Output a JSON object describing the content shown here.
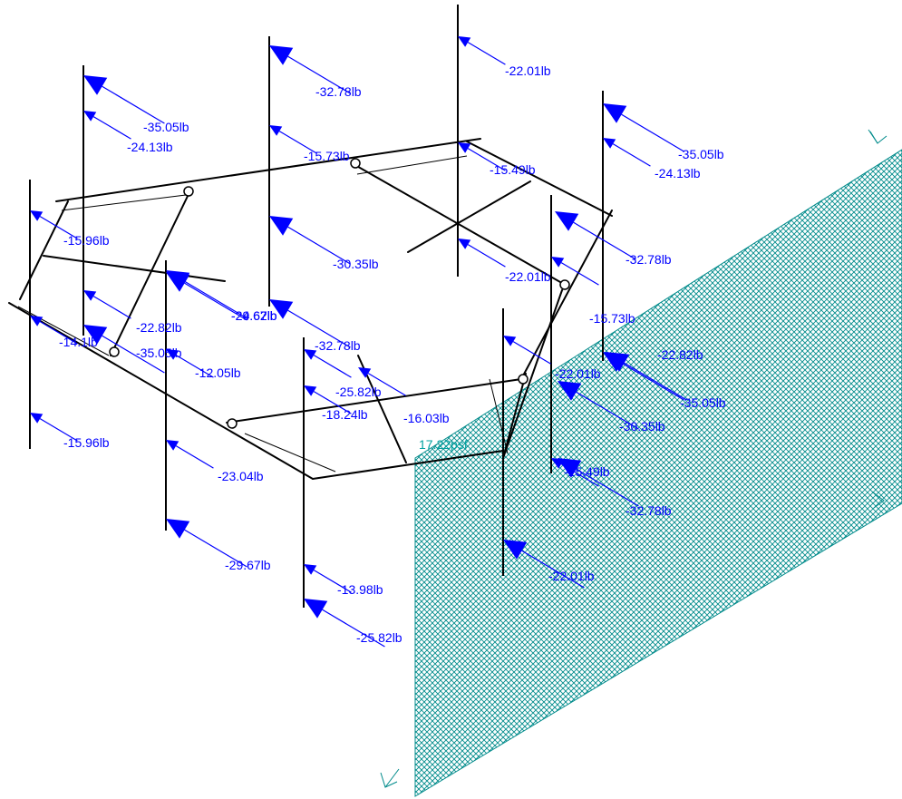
{
  "colors": {
    "load": "#0000ff",
    "panel": "#008b8b",
    "frame": "#000000"
  },
  "pressure_label": "17.22psf",
  "loads": [
    {
      "label": "-22.01lb"
    },
    {
      "label": "-32.78lb"
    },
    {
      "label": "-35.05lb"
    },
    {
      "label": "-24.13lb"
    },
    {
      "label": "-15.73lb"
    },
    {
      "label": "-15.49lb"
    },
    {
      "label": "-35.05lb"
    },
    {
      "label": "-24.13lb"
    },
    {
      "label": "-15.96lb"
    },
    {
      "label": "-30.35lb"
    },
    {
      "label": "-22.01lb"
    },
    {
      "label": "-32.78lb"
    },
    {
      "label": "-29.67lb"
    },
    {
      "label": "-24.62lb"
    },
    {
      "label": "-22.82lb"
    },
    {
      "label": "-14.1lb"
    },
    {
      "label": "-35.05lb"
    },
    {
      "label": "-12.05lb"
    },
    {
      "label": "-32.78lb"
    },
    {
      "label": "-15.73lb"
    },
    {
      "label": "-22.82lb"
    },
    {
      "label": "-25.82lb"
    },
    {
      "label": "-18.24lb"
    },
    {
      "label": "-16.03lb"
    },
    {
      "label": "-22.01lb"
    },
    {
      "label": "-30.35lb"
    },
    {
      "label": "-35.05lb"
    },
    {
      "label": "-15.96lb"
    },
    {
      "label": "-23.04lb"
    },
    {
      "label": "-15.49lb"
    },
    {
      "label": "-32.78lb"
    },
    {
      "label": "-29.67lb"
    },
    {
      "label": "-13.98lb"
    },
    {
      "label": "-22.01lb"
    },
    {
      "label": "-25.82lb"
    }
  ]
}
